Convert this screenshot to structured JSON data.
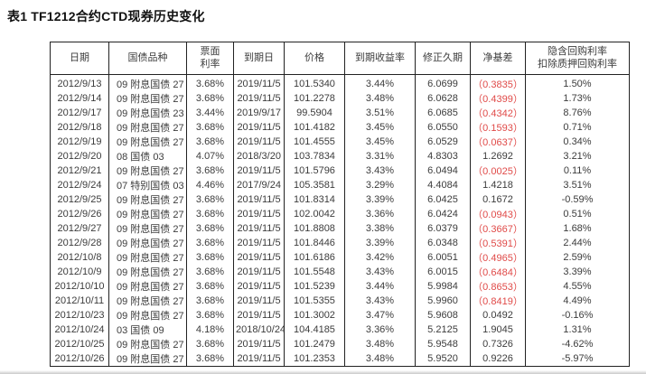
{
  "title": "表1 TF1212合约CTD现券历史变化",
  "colors": {
    "negative_value_red": "#e04a48",
    "body_text": "#3c3c3c",
    "border": "#222222"
  },
  "table": {
    "headers": [
      "日期",
      "国债品种",
      [
        "票面",
        "利率"
      ],
      "到期日",
      "价格",
      "到期收益率",
      "修正久期",
      "净基差",
      [
        "隐含回购利率",
        "扣除质押回购利率"
      ]
    ],
    "row_keys": [
      "date",
      "bond",
      "coupon",
      "maturity",
      "price",
      "ytm",
      "duration",
      "net_basis",
      "irr_minus_repo"
    ],
    "rows": [
      {
        "date": "2012/9/13",
        "bond": "09 附息国债 27",
        "coupon": "3.68%",
        "maturity": "2019/11/5",
        "price": "101.5340",
        "ytm": "3.44%",
        "duration": "6.0699",
        "net_basis": "（0.3835）",
        "irr_minus_repo": "1.50%"
      },
      {
        "date": "2012/9/14",
        "bond": "09 附息国债 27",
        "coupon": "3.68%",
        "maturity": "2019/11/5",
        "price": "101.2278",
        "ytm": "3.48%",
        "duration": "6.0628",
        "net_basis": "（0.4399）",
        "irr_minus_repo": "1.73%"
      },
      {
        "date": "2012/9/17",
        "bond": "09 附息国债 23",
        "coupon": "3.44%",
        "maturity": "2019/9/17",
        "price": "99.5904",
        "ytm": "3.51%",
        "duration": "6.0685",
        "net_basis": "（0.4342）",
        "irr_minus_repo": "8.76%"
      },
      {
        "date": "2012/9/18",
        "bond": "09 附息国债 27",
        "coupon": "3.68%",
        "maturity": "2019/11/5",
        "price": "101.4182",
        "ytm": "3.45%",
        "duration": "6.0550",
        "net_basis": "（0.1593）",
        "irr_minus_repo": "0.71%"
      },
      {
        "date": "2012/9/19",
        "bond": "09 附息国债 27",
        "coupon": "3.68%",
        "maturity": "2019/11/5",
        "price": "101.4555",
        "ytm": "3.45%",
        "duration": "6.0529",
        "net_basis": "（0.0637）",
        "irr_minus_repo": "0.34%"
      },
      {
        "date": "2012/9/20",
        "bond": "08 国债 03",
        "coupon": "4.07%",
        "maturity": "2018/3/20",
        "price": "103.7834",
        "ytm": "3.31%",
        "duration": "4.8303",
        "net_basis": "1.2692",
        "irr_minus_repo": "3.21%"
      },
      {
        "date": "2012/9/21",
        "bond": "09 附息国债 27",
        "coupon": "3.68%",
        "maturity": "2019/11/5",
        "price": "101.5796",
        "ytm": "3.43%",
        "duration": "6.0494",
        "net_basis": "（0.0025）",
        "irr_minus_repo": "0.11%"
      },
      {
        "date": "2012/9/24",
        "bond": "07 特别国债 03",
        "coupon": "4.46%",
        "maturity": "2017/9/24",
        "price": "105.3581",
        "ytm": "3.29%",
        "duration": "4.4084",
        "net_basis": "1.4218",
        "irr_minus_repo": "3.51%"
      },
      {
        "date": "2012/9/25",
        "bond": "09 附息国债 27",
        "coupon": "3.68%",
        "maturity": "2019/11/5",
        "price": "101.8314",
        "ytm": "3.39%",
        "duration": "6.0425",
        "net_basis": "0.1672",
        "irr_minus_repo": "-0.59%"
      },
      {
        "date": "2012/9/26",
        "bond": "09 附息国债 27",
        "coupon": "3.68%",
        "maturity": "2019/11/5",
        "price": "102.0042",
        "ytm": "3.36%",
        "duration": "6.0424",
        "net_basis": "（0.0943）",
        "irr_minus_repo": "0.51%"
      },
      {
        "date": "2012/9/27",
        "bond": "09 附息国债 27",
        "coupon": "3.68%",
        "maturity": "2019/11/5",
        "price": "101.8808",
        "ytm": "3.38%",
        "duration": "6.0379",
        "net_basis": "（0.3667）",
        "irr_minus_repo": "1.68%"
      },
      {
        "date": "2012/9/28",
        "bond": "09 附息国债 27",
        "coupon": "3.68%",
        "maturity": "2019/11/5",
        "price": "101.8446",
        "ytm": "3.39%",
        "duration": "6.0348",
        "net_basis": "（0.5391）",
        "irr_minus_repo": "2.44%"
      },
      {
        "date": "2012/10/8",
        "bond": "09 附息国债 27",
        "coupon": "3.68%",
        "maturity": "2019/11/5",
        "price": "101.6186",
        "ytm": "3.42%",
        "duration": "6.0051",
        "net_basis": "（0.4965）",
        "irr_minus_repo": "2.59%"
      },
      {
        "date": "2012/10/9",
        "bond": "09 附息国债 27",
        "coupon": "3.68%",
        "maturity": "2019/11/5",
        "price": "101.5548",
        "ytm": "3.43%",
        "duration": "6.0015",
        "net_basis": "（0.6484）",
        "irr_minus_repo": "3.39%"
      },
      {
        "date": "2012/10/10",
        "bond": "09 附息国债 27",
        "coupon": "3.68%",
        "maturity": "2019/11/5",
        "price": "101.5239",
        "ytm": "3.44%",
        "duration": "5.9984",
        "net_basis": "（0.8653）",
        "irr_minus_repo": "4.55%"
      },
      {
        "date": "2012/10/11",
        "bond": "09 附息国债 27",
        "coupon": "3.68%",
        "maturity": "2019/11/5",
        "price": "101.5355",
        "ytm": "3.43%",
        "duration": "5.9960",
        "net_basis": "（0.8419）",
        "irr_minus_repo": "4.49%"
      },
      {
        "date": "2012/10/23",
        "bond": "09 附息国债 27",
        "coupon": "3.68%",
        "maturity": "2019/11/5",
        "price": "101.3002",
        "ytm": "3.47%",
        "duration": "5.9608",
        "net_basis": "0.0492",
        "irr_minus_repo": "-0.16%"
      },
      {
        "date": "2012/10/24",
        "bond": "03 国债 09",
        "coupon": "4.18%",
        "maturity": "2018/10/24",
        "price": "104.4185",
        "ytm": "3.36%",
        "duration": "5.2125",
        "net_basis": "1.9045",
        "irr_minus_repo": "1.31%"
      },
      {
        "date": "2012/10/25",
        "bond": "09 附息国债 27",
        "coupon": "3.68%",
        "maturity": "2019/11/5",
        "price": "101.2479",
        "ytm": "3.48%",
        "duration": "5.9548",
        "net_basis": "0.7326",
        "irr_minus_repo": "-4.62%"
      },
      {
        "date": "2012/10/26",
        "bond": "09 附息国债 27",
        "coupon": "3.68%",
        "maturity": "2019/11/5",
        "price": "101.2353",
        "ytm": "3.48%",
        "duration": "5.9520",
        "net_basis": "0.9226",
        "irr_minus_repo": "-5.97%"
      }
    ]
  }
}
